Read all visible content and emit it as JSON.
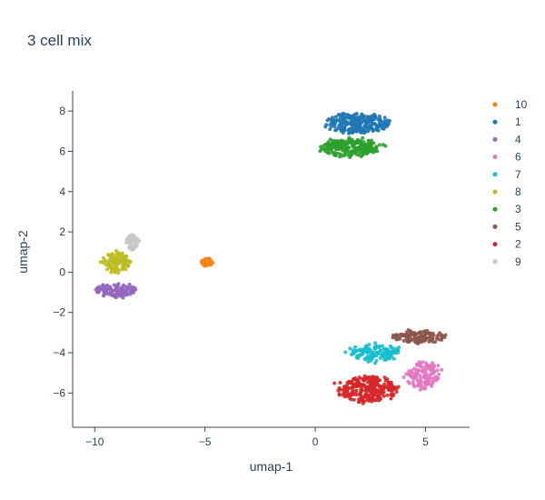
{
  "chart_data": {
    "type": "scatter",
    "title": "3 cell mix",
    "xlabel": "umap-1",
    "ylabel": "umap-2",
    "xlim": [
      -11,
      7
    ],
    "ylim": [
      -7.7,
      9
    ],
    "x_ticks": [
      -10,
      -5,
      0,
      5
    ],
    "y_ticks": [
      -6,
      -4,
      -2,
      0,
      2,
      4,
      6,
      8
    ],
    "x_tick_labels": [
      "−10",
      "−5",
      "0",
      "5"
    ],
    "y_tick_labels": [
      "−6",
      "−4",
      "−2",
      "0",
      "2",
      "4",
      "6",
      "8"
    ],
    "grid": false,
    "legend_position": "right",
    "series": [
      {
        "name": "10",
        "color": "#ff7f0e",
        "cx": -4.9,
        "cy": 0.5,
        "rx": 0.3,
        "ry": 0.25,
        "n": 30
      },
      {
        "name": "1",
        "color": "#1f77b4",
        "cx": 1.9,
        "cy": 7.4,
        "rx": 1.6,
        "ry": 0.55,
        "n": 260
      },
      {
        "name": "4",
        "color": "#9467bd",
        "cx": -9.0,
        "cy": -0.9,
        "rx": 0.95,
        "ry": 0.35,
        "n": 120
      },
      {
        "name": "6",
        "color": "#e377c2",
        "cx": 4.9,
        "cy": -5.1,
        "rx": 0.85,
        "ry": 0.75,
        "n": 130
      },
      {
        "name": "7",
        "color": "#17becf",
        "cx": 2.7,
        "cy": -4.0,
        "rx": 1.3,
        "ry": 0.45,
        "n": 140
      },
      {
        "name": "8",
        "color": "#bcbd22",
        "cx": -9.0,
        "cy": 0.5,
        "rx": 0.7,
        "ry": 0.55,
        "n": 110
      },
      {
        "name": "3",
        "color": "#2ca02c",
        "cx": 1.6,
        "cy": 6.2,
        "rx": 1.5,
        "ry": 0.5,
        "n": 220
      },
      {
        "name": "5",
        "color": "#8c564b",
        "cx": 4.7,
        "cy": -3.2,
        "rx": 1.3,
        "ry": 0.35,
        "n": 130
      },
      {
        "name": "2",
        "color": "#d62728",
        "cx": 2.3,
        "cy": -5.8,
        "rx": 1.5,
        "ry": 0.7,
        "n": 260
      },
      {
        "name": "9",
        "color": "#c7c7c7",
        "cx": -8.3,
        "cy": 1.5,
        "rx": 0.35,
        "ry": 0.45,
        "n": 55
      }
    ]
  }
}
